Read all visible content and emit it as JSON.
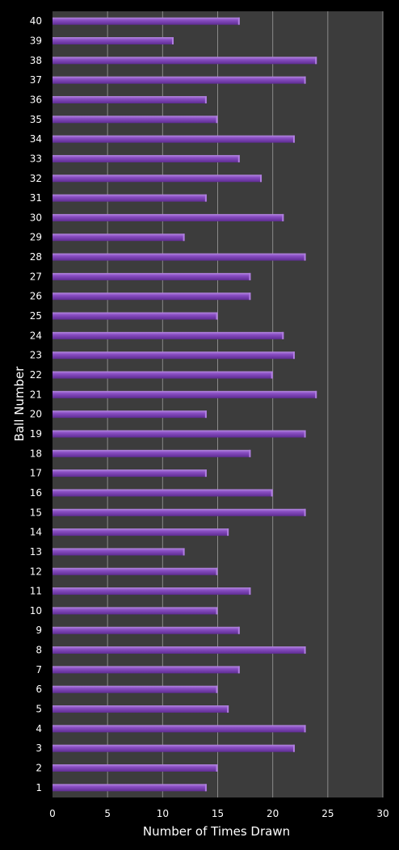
{
  "chart_data": {
    "type": "bar",
    "orientation": "horizontal",
    "xlabel": "Number of Times Drawn",
    "ylabel": "Ball Number",
    "xlim": [
      0,
      30
    ],
    "xticks": [
      0,
      5,
      10,
      15,
      20,
      25,
      30
    ],
    "grid": true,
    "categories": [
      "1",
      "2",
      "3",
      "4",
      "5",
      "6",
      "7",
      "8",
      "9",
      "10",
      "11",
      "12",
      "13",
      "14",
      "15",
      "16",
      "17",
      "18",
      "19",
      "20",
      "21",
      "22",
      "23",
      "24",
      "25",
      "26",
      "27",
      "28",
      "29",
      "30",
      "31",
      "32",
      "33",
      "34",
      "35",
      "36",
      "37",
      "38",
      "39",
      "40"
    ],
    "values": [
      14,
      15,
      22,
      23,
      16,
      15,
      17,
      23,
      17,
      15,
      18,
      15,
      12,
      16,
      23,
      20,
      14,
      18,
      23,
      14,
      24,
      20,
      22,
      21,
      15,
      18,
      18,
      23,
      12,
      21,
      14,
      19,
      17,
      22,
      15,
      14,
      23,
      24,
      11,
      17
    ],
    "colors": {
      "page_background": "#000000",
      "plot_background": "#3c3c3c",
      "gridline": "#8a8a8a",
      "bar": "#7b3fb0",
      "bar_top": "#b07ee0",
      "bar_dark": "#5a2a8a",
      "text": "#ffffff"
    }
  }
}
